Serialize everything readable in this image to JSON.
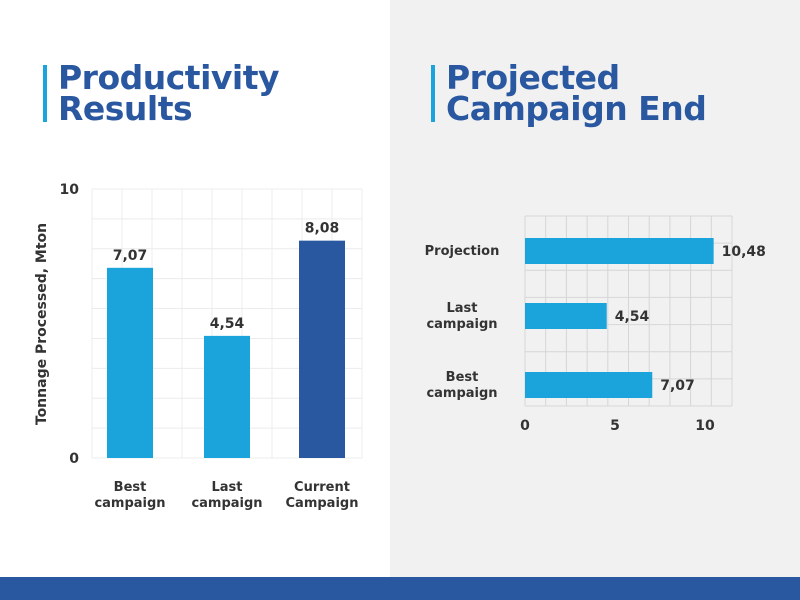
{
  "left_title": [
    "Productivity",
    "Results"
  ],
  "right_title": [
    "Projected",
    "Campaign End"
  ],
  "colors": {
    "brand": "#2957a0",
    "accent": "#1ba3dc",
    "right_bg": "#f1f1f2"
  },
  "chart_data": [
    {
      "type": "bar",
      "orientation": "vertical",
      "categories": [
        "Best campaign",
        "Last campaign",
        "Current Campaign"
      ],
      "category_lines": [
        [
          "Best",
          "campaign"
        ],
        [
          "Last",
          "campaign"
        ],
        [
          "Current",
          "Campaign"
        ]
      ],
      "values": [
        7.07,
        4.54,
        8.08
      ],
      "value_labels": [
        "7,07",
        "4,54",
        "8,08"
      ],
      "bar_colors": [
        "#1ba3dc",
        "#1ba3dc",
        "#2957a0"
      ],
      "ylabel": "Tonnage Processed, Mton",
      "ylim": [
        0,
        10
      ],
      "yticks": [
        "0",
        "10"
      ],
      "grid": true
    },
    {
      "type": "bar",
      "orientation": "horizontal",
      "categories": [
        "Projection",
        "Last campaign",
        "Best campaign"
      ],
      "category_lines": [
        [
          "Projection"
        ],
        [
          "Last",
          "campaign"
        ],
        [
          "Best",
          "campaign"
        ]
      ],
      "values": [
        10.48,
        4.54,
        7.07
      ],
      "value_labels": [
        "10,48",
        "4,54",
        "7,07"
      ],
      "bar_colors": [
        "#1ba3dc",
        "#1ba3dc",
        "#1ba3dc"
      ],
      "xlim": [
        0,
        11.5
      ],
      "xticks": [
        0,
        5,
        10
      ],
      "xtick_labels": [
        "0",
        "5",
        "10"
      ],
      "grid": true
    }
  ]
}
